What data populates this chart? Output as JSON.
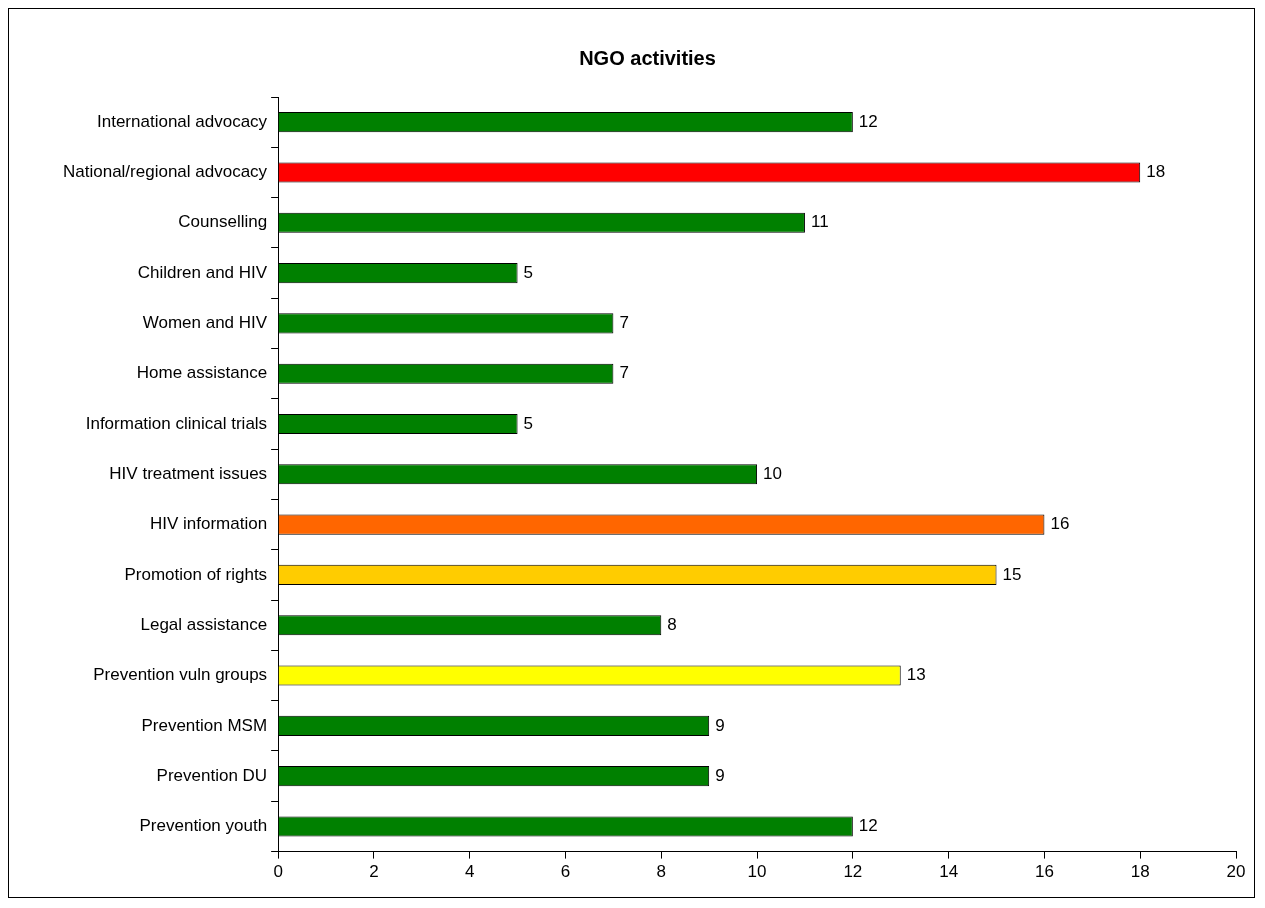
{
  "chart_data": {
    "type": "bar",
    "orientation": "horizontal",
    "title": "NGO activities",
    "categories": [
      "International advocacy",
      "National/regional advocacy",
      "Counselling",
      "Children and HIV",
      "Women and HIV",
      "Home assistance",
      "Information clinical trials",
      "HIV treatment issues",
      "HIV information",
      "Promotion of rights",
      "Legal assistance",
      "Prevention vuln groups",
      "Prevention MSM",
      "Prevention DU",
      "Prevention youth"
    ],
    "values": [
      12,
      18,
      11,
      5,
      7,
      7,
      5,
      10,
      16,
      15,
      8,
      13,
      9,
      9,
      12
    ],
    "colors": [
      "#008000",
      "#ff0000",
      "#008000",
      "#008000",
      "#008000",
      "#008000",
      "#008000",
      "#008000",
      "#ff6600",
      "#ffcc00",
      "#008000",
      "#ffff00",
      "#008000",
      "#008000",
      "#008000"
    ],
    "xlim": [
      0,
      20
    ],
    "xticks": [
      0,
      2,
      4,
      6,
      8,
      10,
      12,
      14,
      16,
      18,
      20
    ],
    "grid": false,
    "data_labels": true,
    "legend": false
  }
}
